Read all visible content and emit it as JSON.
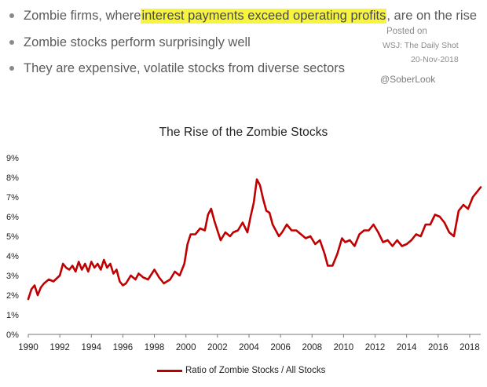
{
  "bullets": [
    {
      "pre": "Zombie firms, where ",
      "highlight": "interest payments exceed operating profits",
      "post": ", are on the rise"
    },
    {
      "pre": "Zombie stocks perform surprisingly well",
      "highlight": "",
      "post": ""
    },
    {
      "pre": "They are expensive, volatile stocks from diverse sectors",
      "highlight": "",
      "post": ""
    }
  ],
  "source": {
    "line1": "Posted on",
    "line2": "WSJ: The Daily Shot",
    "line3": "20-Nov-2018",
    "handle": "@SoberLook"
  },
  "colors": {
    "highlight": "#f6f43c",
    "line": "#c00000"
  },
  "chart_data": {
    "type": "line",
    "title": "The Rise of the Zombie Stocks",
    "xlabel": "",
    "ylabel": "",
    "xlim": [
      1990,
      2018.7
    ],
    "ylim": [
      0,
      9
    ],
    "x_ticks": [
      "1990",
      "1992",
      "1994",
      "1996",
      "1998",
      "2000",
      "2002",
      "2004",
      "2006",
      "2008",
      "2010",
      "2012",
      "2014",
      "2016",
      "2018"
    ],
    "y_ticks": [
      "0%",
      "1%",
      "2%",
      "3%",
      "4%",
      "5%",
      "6%",
      "7%",
      "8%",
      "9%"
    ],
    "grid": false,
    "legend_position": "bottom",
    "series": [
      {
        "name": "Ratio of Zombie Stocks / All Stocks",
        "x": [
          1990.0,
          1990.2,
          1990.4,
          1990.6,
          1990.8,
          1991.0,
          1991.3,
          1991.6,
          1992.0,
          1992.2,
          1992.4,
          1992.6,
          1992.8,
          1993.0,
          1993.2,
          1993.4,
          1993.6,
          1993.8,
          1994.0,
          1994.2,
          1994.4,
          1994.6,
          1994.8,
          1995.0,
          1995.2,
          1995.4,
          1995.6,
          1995.8,
          1996.0,
          1996.2,
          1996.5,
          1996.8,
          1997.0,
          1997.3,
          1997.6,
          1998.0,
          1998.3,
          1998.6,
          1999.0,
          1999.3,
          1999.6,
          1999.9,
          2000.1,
          2000.3,
          2000.6,
          2000.9,
          2001.2,
          2001.4,
          2001.6,
          2001.8,
          2002.0,
          2002.2,
          2002.5,
          2002.8,
          2003.0,
          2003.3,
          2003.6,
          2003.9,
          2004.1,
          2004.3,
          2004.5,
          2004.7,
          2004.9,
          2005.1,
          2005.3,
          2005.5,
          2005.7,
          2005.9,
          2006.1,
          2006.4,
          2006.7,
          2007.0,
          2007.3,
          2007.6,
          2007.9,
          2008.2,
          2008.5,
          2008.8,
          2009.0,
          2009.3,
          2009.6,
          2009.9,
          2010.1,
          2010.4,
          2010.7,
          2011.0,
          2011.3,
          2011.6,
          2011.9,
          2012.2,
          2012.5,
          2012.8,
          2013.1,
          2013.4,
          2013.7,
          2014.0,
          2014.3,
          2014.6,
          2014.9,
          2015.2,
          2015.5,
          2015.8,
          2016.1,
          2016.4,
          2016.7,
          2017.0,
          2017.3,
          2017.6,
          2017.9,
          2018.2,
          2018.5,
          2018.7
        ],
        "y": [
          1.8,
          2.3,
          2.5,
          2.0,
          2.4,
          2.6,
          2.8,
          2.7,
          3.0,
          3.6,
          3.4,
          3.3,
          3.5,
          3.2,
          3.7,
          3.3,
          3.6,
          3.2,
          3.7,
          3.4,
          3.6,
          3.3,
          3.8,
          3.4,
          3.6,
          3.1,
          3.3,
          2.7,
          2.5,
          2.6,
          3.0,
          2.8,
          3.1,
          2.9,
          2.8,
          3.3,
          2.9,
          2.6,
          2.8,
          3.2,
          3.0,
          3.6,
          4.6,
          5.1,
          5.1,
          5.4,
          5.3,
          6.1,
          6.4,
          5.8,
          5.3,
          4.8,
          5.2,
          5.0,
          5.2,
          5.3,
          5.7,
          5.2,
          6.0,
          6.7,
          7.9,
          7.6,
          6.9,
          6.3,
          6.2,
          5.6,
          5.3,
          5.0,
          5.2,
          5.6,
          5.3,
          5.3,
          5.1,
          4.9,
          5.0,
          4.6,
          4.8,
          4.1,
          3.5,
          3.5,
          4.1,
          4.9,
          4.7,
          4.8,
          4.5,
          5.1,
          5.3,
          5.3,
          5.6,
          5.2,
          4.7,
          4.8,
          4.5,
          4.8,
          4.5,
          4.6,
          4.8,
          5.1,
          5.0,
          5.6,
          5.6,
          6.1,
          6.0,
          5.7,
          5.2,
          5.0,
          6.3,
          6.6,
          6.4,
          7.0,
          7.3,
          7.5
        ]
      }
    ]
  }
}
